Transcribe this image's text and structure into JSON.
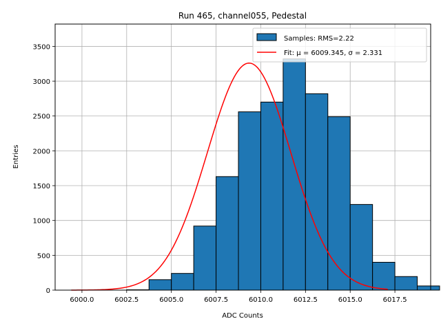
{
  "chart_data": {
    "type": "bar",
    "title": "Run 465, channel055, Pedestal",
    "xlabel": "ADC Counts",
    "ylabel": "Entries",
    "xlim": [
      5998.5,
      6019.5
    ],
    "ylim": [
      0,
      3820
    ],
    "grid": true,
    "legend_position": "top-right",
    "xticks": [
      6000.0,
      6002.5,
      6005.0,
      6007.5,
      6010.0,
      6012.5,
      6015.0,
      6017.5
    ],
    "xtick_labels": [
      "6000.0",
      "6002.5",
      "6005.0",
      "6007.5",
      "6010.0",
      "6012.5",
      "6015.0",
      "6017.5"
    ],
    "yticks": [
      0,
      500,
      1000,
      1500,
      2000,
      2500,
      3000,
      3500
    ],
    "ytick_labels": [
      "0",
      "500",
      "1000",
      "1500",
      "2000",
      "2500",
      "3000",
      "3500"
    ],
    "bin_width": 1.25,
    "bins": [
      {
        "x0": 6002.5,
        "count": 5
      },
      {
        "x0": 6003.75,
        "count": 150
      },
      {
        "x0": 6005.0,
        "count": 240
      },
      {
        "x0": 6006.25,
        "count": 920
      },
      {
        "x0": 6007.5,
        "count": 1630
      },
      {
        "x0": 6008.75,
        "count": 2560
      },
      {
        "x0": 6010.0,
        "count": 2700
      },
      {
        "x0": 6011.25,
        "count": 3320
      },
      {
        "x0": 6012.5,
        "count": 2820
      },
      {
        "x0": 6013.75,
        "count": 2490
      },
      {
        "x0": 6015.0,
        "count": 1230
      },
      {
        "x0": 6016.25,
        "count": 400
      },
      {
        "x0": 6017.5,
        "count": 195
      },
      {
        "x0": 6018.75,
        "count": 60
      }
    ],
    "series": [
      {
        "name": "Samples: RMS=2.22",
        "kind": "histogram",
        "color": "#1f77b4"
      },
      {
        "name": "Fit: μ = 6009.345, σ = 2.331",
        "kind": "line",
        "color": "#ff0000",
        "mu": 6009.345,
        "sigma": 2.331,
        "amplitude": 3260,
        "x_range": [
          5999.4,
          6017.1
        ]
      }
    ]
  }
}
